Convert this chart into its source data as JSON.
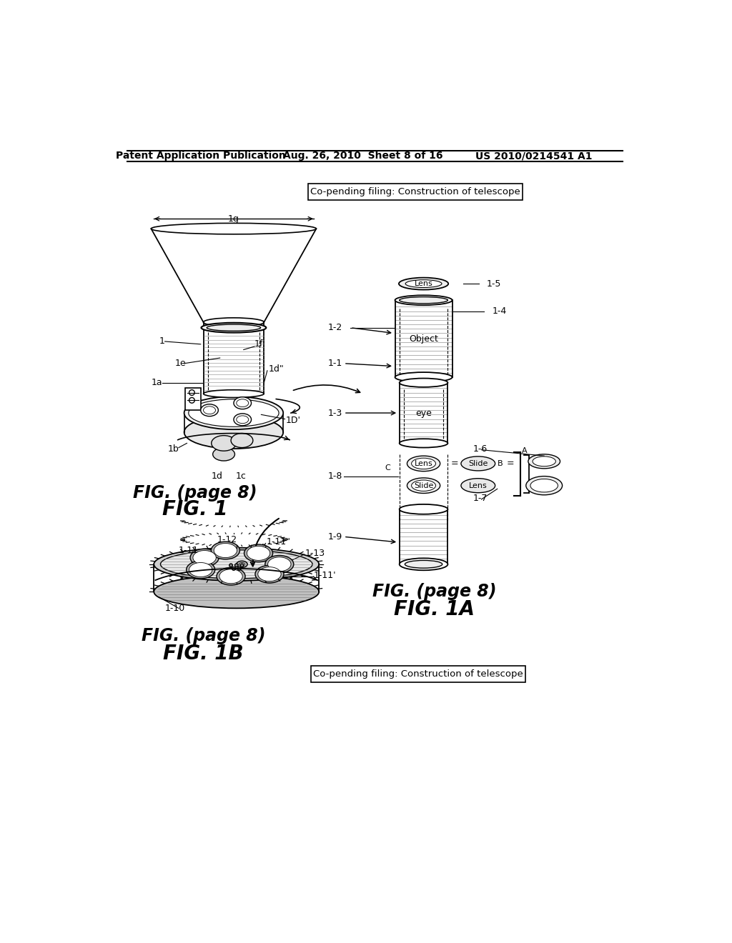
{
  "page_header_left": "Patent Application Publication",
  "page_header_middle": "Aug. 26, 2010  Sheet 8 of 16",
  "page_header_right": "US 2010/0214541 A1",
  "box_text_top": "Co-pending filing: Construction of telescope",
  "box_text_bottom": "Co-pending filing: Construction of telescope",
  "fig1_caption_line1": "FIG. (page 8)",
  "fig1_caption_line2": "FIG. 1",
  "fig1a_caption_line1": "FIG. (page 8)",
  "fig1a_caption_line2": "FIG. 1A",
  "fig1b_caption_line1": "FIG. (page 8)",
  "fig1b_caption_line2": "FIG. 1B",
  "bg_color": "#ffffff",
  "line_color": "#000000",
  "label_color": "#000000"
}
